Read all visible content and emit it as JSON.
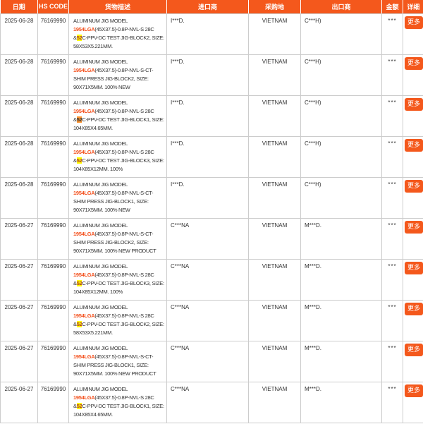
{
  "colors": {
    "accent": "#f4581c",
    "model_keyword": "#f4511e",
    "match_highlight": "#ffff00",
    "match_active_highlight": "#ff9632",
    "grid_border": "#cccccc",
    "text": "#333333"
  },
  "table": {
    "columns": [
      {
        "key": "date",
        "label": "日期"
      },
      {
        "key": "hs_code",
        "label": "HS CODE"
      },
      {
        "key": "desc",
        "label": "货物描述"
      },
      {
        "key": "importer",
        "label": "进口商"
      },
      {
        "key": "origin",
        "label": "采购地"
      },
      {
        "key": "exporter",
        "label": "出口商"
      },
      {
        "key": "amount",
        "label": "金额"
      },
      {
        "key": "detail",
        "label": "详细"
      }
    ],
    "more_label": "更多",
    "rows": [
      {
        "date": "2025-06-28",
        "hs_code": "76169990",
        "desc_lines": [
          [
            {
              "t": "ALUMINUM JIG MODEL",
              "s": "plain"
            }
          ],
          [
            {
              "t": "1954LGA",
              "s": "model"
            },
            {
              "t": "(45X37.5)-0.8P-NVL-S 28C",
              "s": "plain"
            }
          ],
          [
            {
              "t": "&",
              "s": "plain"
            },
            {
              "t": "52",
              "s": "match"
            },
            {
              "t": "C-PPV-DC TEST JIG-BLOCK2, SIZE:",
              "s": "plain"
            }
          ],
          [
            {
              "t": "58X53X5.221MM.",
              "s": "plain"
            }
          ]
        ],
        "importer": "I***D.",
        "origin": "VIETNAM",
        "exporter": "C***H)",
        "amount": "***"
      },
      {
        "date": "2025-06-28",
        "hs_code": "76169990",
        "desc_lines": [
          [
            {
              "t": "ALUMINUM JIG MODEL",
              "s": "plain"
            }
          ],
          [
            {
              "t": "1954LGA",
              "s": "model"
            },
            {
              "t": "(45X37.5)-0.8P-NVL-S-CT-",
              "s": "plain"
            }
          ],
          [
            {
              "t": "SHIM PRESS JIG-BLOCK2, SIZE:",
              "s": "plain"
            }
          ],
          [
            {
              "t": "90X71X5MM. 100% NEW",
              "s": "plain"
            }
          ]
        ],
        "importer": "I***D.",
        "origin": "VIETNAM",
        "exporter": "C***H)",
        "amount": "***"
      },
      {
        "date": "2025-06-28",
        "hs_code": "76169990",
        "desc_lines": [
          [
            {
              "t": "ALUMINUM JIG MODEL",
              "s": "plain"
            }
          ],
          [
            {
              "t": "1954LGA",
              "s": "model"
            },
            {
              "t": "(45X37.5)-0.8P-NVL-S 28C",
              "s": "plain"
            }
          ],
          [
            {
              "t": "&",
              "s": "plain"
            },
            {
              "t": "52",
              "s": "active"
            },
            {
              "t": "C-PPV-DC TEST JIG-BLOCK1, SIZE:",
              "s": "plain"
            }
          ],
          [
            {
              "t": "104X85X4.65MM.",
              "s": "plain"
            }
          ]
        ],
        "importer": "I***D.",
        "origin": "VIETNAM",
        "exporter": "C***H)",
        "amount": "***"
      },
      {
        "date": "2025-06-28",
        "hs_code": "76169990",
        "desc_lines": [
          [
            {
              "t": "ALUMINUM JIG MODEL",
              "s": "plain"
            }
          ],
          [
            {
              "t": "1954LGA",
              "s": "model"
            },
            {
              "t": "(45X37.5)-0.8P-NVL-S 28C",
              "s": "plain"
            }
          ],
          [
            {
              "t": "&",
              "s": "plain"
            },
            {
              "t": "52",
              "s": "match"
            },
            {
              "t": "C-PPV-DC TEST JIG-BLOCK3, SIZE:",
              "s": "plain"
            }
          ],
          [
            {
              "t": "104X85X12MM. 100%",
              "s": "plain"
            }
          ]
        ],
        "importer": "I***D.",
        "origin": "VIETNAM",
        "exporter": "C***H)",
        "amount": "***"
      },
      {
        "date": "2025-06-28",
        "hs_code": "76169990",
        "desc_lines": [
          [
            {
              "t": "ALUMINUM JIG MODEL",
              "s": "plain"
            }
          ],
          [
            {
              "t": "1954LGA",
              "s": "model"
            },
            {
              "t": "(45X37.5)-0.8P-NVL-S-CT-",
              "s": "plain"
            }
          ],
          [
            {
              "t": "SHIM PRESS JIG-BLOCK1, SIZE:",
              "s": "plain"
            }
          ],
          [
            {
              "t": "90X71X5MM. 100% NEW",
              "s": "plain"
            }
          ]
        ],
        "importer": "I***D.",
        "origin": "VIETNAM",
        "exporter": "C***H)",
        "amount": "***"
      },
      {
        "date": "2025-06-27",
        "hs_code": "76169990",
        "desc_lines": [
          [
            {
              "t": "ALUMINUM JIG MODEL",
              "s": "plain"
            }
          ],
          [
            {
              "t": "1954LGA",
              "s": "model"
            },
            {
              "t": "(45X37.5)-0.8P-NVL-S-CT-",
              "s": "plain"
            }
          ],
          [
            {
              "t": "SHIM PRESS JIG-BLOCK2, SIZE:",
              "s": "plain"
            }
          ],
          [
            {
              "t": "90X71X5MM. 100% NEW PRODUCT",
              "s": "plain"
            }
          ]
        ],
        "importer": "C***NA",
        "origin": "VIETNAM",
        "exporter": "M***D.",
        "amount": "***"
      },
      {
        "date": "2025-06-27",
        "hs_code": "76169990",
        "desc_lines": [
          [
            {
              "t": "ALUMINUM JIG MODEL",
              "s": "plain"
            }
          ],
          [
            {
              "t": "1954LGA",
              "s": "model"
            },
            {
              "t": "(45X37.5)-0.8P-NVL-S 28C",
              "s": "plain"
            }
          ],
          [
            {
              "t": "&",
              "s": "plain"
            },
            {
              "t": "52",
              "s": "match"
            },
            {
              "t": "C-PPV-DC TEST JIG-BLOCK3, SIZE:",
              "s": "plain"
            }
          ],
          [
            {
              "t": "104X85X12MM. 100%",
              "s": "plain"
            }
          ]
        ],
        "importer": "C***NA",
        "origin": "VIETNAM",
        "exporter": "M***D.",
        "amount": "***"
      },
      {
        "date": "2025-06-27",
        "hs_code": "76169990",
        "desc_lines": [
          [
            {
              "t": "ALUMINUM JIG MODEL",
              "s": "plain"
            }
          ],
          [
            {
              "t": "1954LGA",
              "s": "model"
            },
            {
              "t": "(45X37.5)-0.8P-NVL-S 28C",
              "s": "plain"
            }
          ],
          [
            {
              "t": "&",
              "s": "plain"
            },
            {
              "t": "52",
              "s": "match"
            },
            {
              "t": "C-PPV-DC TEST JIG-BLOCK2, SIZE:",
              "s": "plain"
            }
          ],
          [
            {
              "t": "58X53X5.221MM.",
              "s": "plain"
            }
          ]
        ],
        "importer": "C***NA",
        "origin": "VIETNAM",
        "exporter": "M***D.",
        "amount": "***"
      },
      {
        "date": "2025-06-27",
        "hs_code": "76169990",
        "desc_lines": [
          [
            {
              "t": "ALUMINUM JIG MODEL",
              "s": "plain"
            }
          ],
          [
            {
              "t": "1954LGA",
              "s": "model"
            },
            {
              "t": "(45X37.5)-0.8P-NVL-S-CT-",
              "s": "plain"
            }
          ],
          [
            {
              "t": "SHIM PRESS JIG-BLOCK1, SIZE:",
              "s": "plain"
            }
          ],
          [
            {
              "t": "90X71X5MM. 100% NEW PRODUCT",
              "s": "plain"
            }
          ]
        ],
        "importer": "C***NA",
        "origin": "VIETNAM",
        "exporter": "M***D.",
        "amount": "***"
      },
      {
        "date": "2025-06-27",
        "hs_code": "76169990",
        "desc_lines": [
          [
            {
              "t": "ALUMINUM JIG MODEL",
              "s": "plain"
            }
          ],
          [
            {
              "t": "1954LGA",
              "s": "model"
            },
            {
              "t": "(45X37.5)-0.8P-NVL-S 28C",
              "s": "plain"
            }
          ],
          [
            {
              "t": "&",
              "s": "plain"
            },
            {
              "t": "52",
              "s": "match"
            },
            {
              "t": "C-PPV-DC TEST JIG-BLOCK1, SIZE:",
              "s": "plain"
            }
          ],
          [
            {
              "t": "104X85X4.65MM.",
              "s": "plain"
            }
          ]
        ],
        "importer": "C***NA",
        "origin": "VIETNAM",
        "exporter": "M***D.",
        "amount": "***"
      }
    ]
  }
}
